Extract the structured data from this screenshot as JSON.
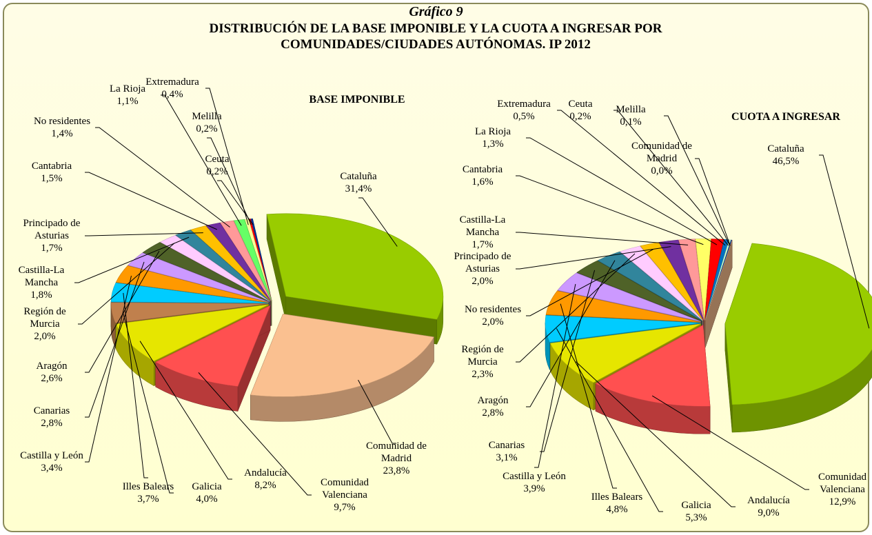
{
  "header": {
    "caption": "Gráfico 9",
    "title": "DISTRIBUCIÓN DE LA BASE IMPONIBLE Y LA CUOTA A INGRESAR POR COMUNIDADES/CIUDADES AUTÓNOMAS. IP 2012"
  },
  "chart_data": [
    {
      "type": "pie",
      "title": "BASE IMPONIBLE",
      "categories": [
        "Cataluña",
        "Comunidad de Madrid",
        "Comunidad Valenciana",
        "Andalucía",
        "Galicia",
        "Illes Balears",
        "Castilla y León",
        "Canarias",
        "Aragón",
        "Región de Murcia",
        "Castilla-La Mancha",
        "Principado de Asturias",
        "Cantabria",
        "No residentes",
        "La Rioja",
        "Extremadura",
        "Melilla",
        "Ceuta"
      ],
      "values": [
        31.4,
        23.8,
        9.7,
        8.2,
        4.0,
        3.7,
        3.4,
        2.8,
        2.6,
        2.0,
        1.8,
        1.7,
        1.5,
        1.4,
        1.1,
        0.4,
        0.2,
        0.2
      ],
      "value_labels": [
        "31,4%",
        "23,8%",
        "9,7%",
        "8,2%",
        "4,0%",
        "3,7%",
        "3,4%",
        "2,8%",
        "2,6%",
        "2,0%",
        "1,8%",
        "1,7%",
        "1,5%",
        "1,4%",
        "1,1%",
        "0,4%",
        "0,2%",
        "0,2%"
      ],
      "colors": [
        "#99cc00",
        "#fac090",
        "#ff5050",
        "#e6e600",
        "#c0804d",
        "#00ccff",
        "#ff9900",
        "#cc99ff",
        "#4f6228",
        "#ffccff",
        "#31859c",
        "#ffc000",
        "#7030a0",
        "#ff9999",
        "#66ff66",
        "#ffff99",
        "#ff0000",
        "#003399"
      ]
    },
    {
      "type": "pie",
      "title": "CUOTA A INGRESAR",
      "categories": [
        "Cataluña",
        "Comunidad Valenciana",
        "Andalucía",
        "Galicia",
        "Illes Balears",
        "Castilla y León",
        "Canarias",
        "Aragón",
        "Región de Murcia",
        "No residentes",
        "Principado de Asturias",
        "Castilla-La Mancha",
        "Cantabria",
        "La Rioja",
        "Extremadura",
        "Ceuta",
        "Melilla",
        "Comunidad de Madrid"
      ],
      "values": [
        46.5,
        12.9,
        9.0,
        5.3,
        4.8,
        3.9,
        3.1,
        2.8,
        2.3,
        2.0,
        2.0,
        1.7,
        1.6,
        1.3,
        0.5,
        0.2,
        0.1,
        0.0
      ],
      "value_labels": [
        "46,5%",
        "12,9%",
        "9,0%",
        "5,3%",
        "4,8%",
        "3,9%",
        "3,1%",
        "2,8%",
        "2,3%",
        "2,0%",
        "2,0%",
        "1,7%",
        "1,6%",
        "1,3%",
        "0,5%",
        "0,2%",
        "0,1%",
        "0,0%"
      ],
      "colors": [
        "#99cc00",
        "#ff5050",
        "#e6e600",
        "#00ccff",
        "#ff9900",
        "#cc99ff",
        "#4f6228",
        "#31859c",
        "#ffccff",
        "#ffc000",
        "#7030a0",
        "#ff9999",
        "#ffff66",
        "#ff0000",
        "#0070c0",
        "#ccffcc",
        "#003399",
        "#fac090"
      ]
    }
  ]
}
